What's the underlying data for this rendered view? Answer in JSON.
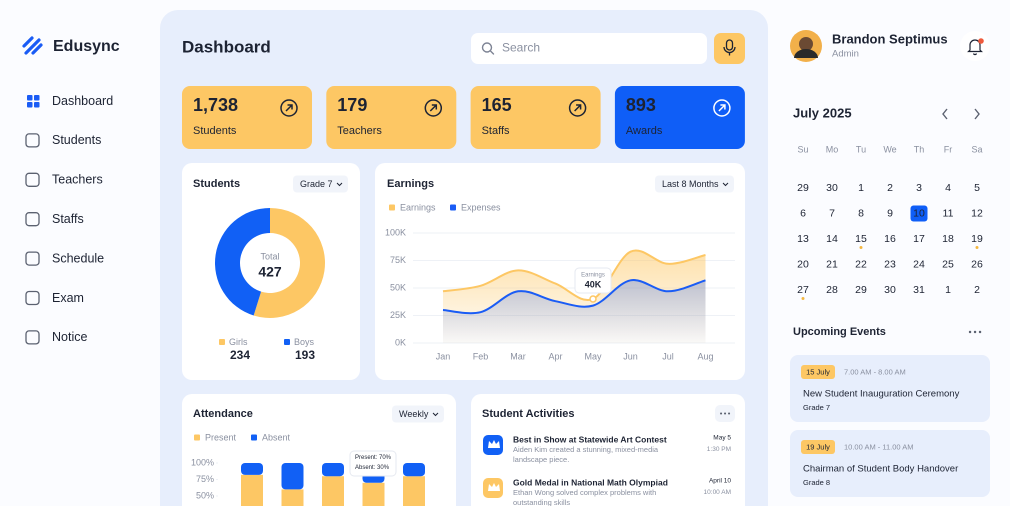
{
  "sidebar": {
    "brand": "Edusync",
    "nav": [
      "Dashboard",
      "Students",
      "Teachers",
      "Staffs",
      "Schedule",
      "Exam",
      "Notice"
    ],
    "active": 0
  },
  "header": {
    "title": "Dashboard",
    "search_placeholder": "Search"
  },
  "stats": [
    {
      "value": "1,738",
      "label": "Students",
      "highlight": false
    },
    {
      "value": "179",
      "label": "Teachers",
      "highlight": false
    },
    {
      "value": "165",
      "label": "Staffs",
      "highlight": false
    },
    {
      "value": "893",
      "label": "Awards",
      "highlight": true
    }
  ],
  "chart_data": [
    {
      "type": "donut",
      "title": "Students",
      "filter": "Grade 7",
      "center_label": "Total",
      "total": 427,
      "series": [
        {
          "name": "Girls",
          "color": "#fdc764",
          "value": 234
        },
        {
          "name": "Boys",
          "color": "#1160f5",
          "value": 193
        }
      ]
    },
    {
      "type": "line",
      "title": "Earnings",
      "filter": "Last 8 Months",
      "categories": [
        "Jan",
        "Feb",
        "Mar",
        "Apr",
        "May",
        "Jun",
        "Jul",
        "Aug"
      ],
      "series": [
        {
          "name": "Earnings",
          "color": "#fdc764",
          "values": [
            47000,
            52000,
            66000,
            54000,
            40000,
            83000,
            72000,
            80000
          ]
        },
        {
          "name": "Expenses",
          "color": "#1a5cf5",
          "values": [
            30000,
            28000,
            47000,
            38000,
            34000,
            57000,
            47000,
            57000
          ]
        }
      ],
      "ylim": [
        0,
        100000
      ],
      "yticks": [
        {
          "value": 0,
          "label": "0K"
        },
        {
          "value": 25000,
          "label": "25K"
        },
        {
          "value": 50000,
          "label": "50K"
        },
        {
          "value": 75000,
          "label": "75K"
        },
        {
          "value": 100000,
          "label": "100K"
        }
      ],
      "grid": true,
      "annotation": {
        "title": "Earnings",
        "text": "40K",
        "x": "May"
      }
    },
    {
      "type": "bar",
      "title": "Attendance",
      "filter": "Weekly",
      "categories": [
        null,
        null,
        null,
        null,
        null
      ],
      "series": [
        {
          "name": "Present",
          "color": "#fdc764",
          "values": [
            82,
            60,
            80,
            70,
            80
          ]
        },
        {
          "name": "Absent",
          "color": "#1160f5",
          "values": [
            18,
            40,
            20,
            30,
            20
          ]
        }
      ],
      "stacked": true,
      "ylim": [
        0,
        100
      ],
      "yticks": [
        {
          "value": 100,
          "label": "100%"
        },
        {
          "value": 75,
          "label": "75%"
        },
        {
          "value": 50,
          "label": "50%"
        }
      ],
      "tooltip": [
        "Present: 70%",
        "Absent: 30%"
      ]
    }
  ],
  "student_activities": {
    "title": "Student Activities",
    "items": [
      {
        "title": "Best in Show at Statewide Art Contest",
        "description": "Aiden Kim created a stunning, mixed-media landscape piece.",
        "date": "May 5",
        "time": "1:30 PM",
        "color": "#1160f5"
      },
      {
        "title": "Gold Medal in National Math Olympiad",
        "description": "Ethan Wong solved complex problems with outstanding skills",
        "date": "April 10",
        "time": "10:00 AM",
        "color": "#fdc764"
      }
    ]
  },
  "profile": {
    "name": "Brandon Septimus",
    "role": "Admin"
  },
  "calendar": {
    "title": "July 2025",
    "weekdays": [
      "Su",
      "Mo",
      "Tu",
      "We",
      "Th",
      "Fr",
      "Sa"
    ],
    "leading_days": [
      29,
      30
    ],
    "days": [
      1,
      2,
      3,
      4,
      5,
      6,
      7,
      8,
      9,
      10,
      11,
      12,
      13,
      14,
      15,
      16,
      17,
      18,
      19,
      20,
      21,
      22,
      23,
      24,
      25,
      26,
      27,
      28,
      29,
      30,
      31
    ],
    "trailing_days": [
      1,
      2
    ],
    "selected": 10,
    "marked": [
      15,
      19,
      27
    ]
  },
  "upcoming_events": {
    "title": "Upcoming Events",
    "events": [
      {
        "date": "15 July",
        "time": "7.00 AM - 8.00 AM",
        "title": "New Student Inauguration Ceremony",
        "grade": "Grade 7"
      },
      {
        "date": "19 July",
        "time": "10.00 AM - 11.00 AM",
        "title": "Chairman of Student Body Handover",
        "grade": "Grade 8"
      }
    ]
  }
}
